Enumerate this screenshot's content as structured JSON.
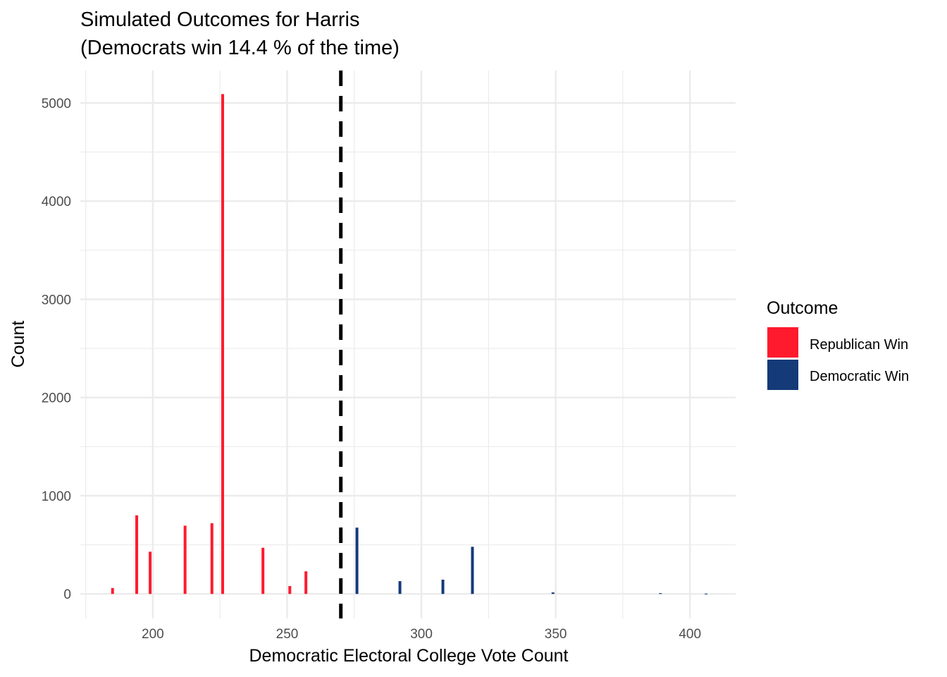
{
  "chart_data": {
    "type": "bar",
    "title": "Simulated Outcomes for Harris",
    "subtitle": "(Democrats win 14.4 % of the time)",
    "xlabel": "Democratic Electoral College Vote Count",
    "ylabel": "Count",
    "xlim": [
      173,
      417
    ],
    "ylim": [
      -250,
      5330
    ],
    "x_ticks": [
      200,
      250,
      300,
      350,
      400
    ],
    "x_tick_labels": [
      "200",
      "250",
      "300",
      "350",
      "400"
    ],
    "y_ticks": [
      0,
      1000,
      2000,
      3000,
      4000,
      5000
    ],
    "y_tick_labels": [
      "0",
      "1000",
      "2000",
      "3000",
      "4000",
      "5000"
    ],
    "threshold_line": {
      "x": 270,
      "style": "dashed",
      "color": "#000000"
    },
    "legend": {
      "title": "Outcome",
      "position": "right",
      "entries": [
        {
          "label": "Republican Win",
          "color": "#ff1a2e"
        },
        {
          "label": "Democratic Win",
          "color": "#143a78"
        }
      ]
    },
    "grid": true,
    "series": [
      {
        "name": "Republican Win",
        "color": "#ff1a2e",
        "points": [
          {
            "x": 185,
            "y": 60
          },
          {
            "x": 194,
            "y": 800
          },
          {
            "x": 199,
            "y": 430
          },
          {
            "x": 212,
            "y": 695
          },
          {
            "x": 222,
            "y": 720
          },
          {
            "x": 226,
            "y": 5090
          },
          {
            "x": 241,
            "y": 470
          },
          {
            "x": 251,
            "y": 80
          },
          {
            "x": 257,
            "y": 230
          }
        ]
      },
      {
        "name": "Democratic Win",
        "color": "#143a78",
        "points": [
          {
            "x": 276,
            "y": 675
          },
          {
            "x": 292,
            "y": 130
          },
          {
            "x": 308,
            "y": 145
          },
          {
            "x": 319,
            "y": 480
          },
          {
            "x": 349,
            "y": 15
          },
          {
            "x": 389,
            "y": 8
          },
          {
            "x": 406,
            "y": 3
          }
        ]
      }
    ]
  }
}
